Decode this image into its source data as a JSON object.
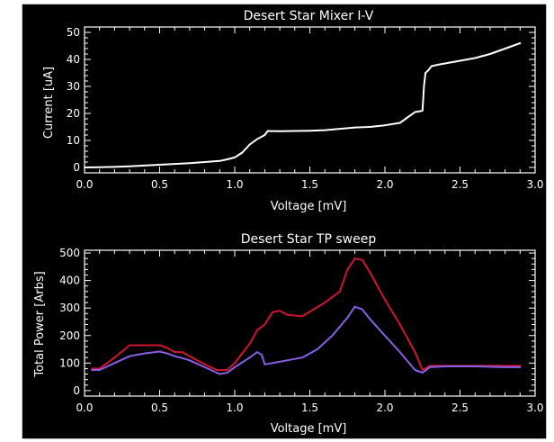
{
  "colors": {
    "background": "#000000",
    "border": "#ffffff",
    "axis": "#ffffff",
    "text": "#ffffff",
    "series_iv": "#ffffff",
    "series_red": "#d2152f",
    "series_violet": "#8a5fe6"
  },
  "chart_data": [
    {
      "type": "line",
      "title": "Desert Star Mixer I-V",
      "xlabel": "Voltage [mV]",
      "ylabel": "Current [uA]",
      "xlim": [
        0,
        3
      ],
      "ylim": [
        -2,
        52
      ],
      "xticks": [
        "0.0",
        "0.5",
        "1.0",
        "1.5",
        "2.0",
        "2.5",
        "3.0"
      ],
      "yticks": [
        "0",
        "10",
        "20",
        "30",
        "40",
        "50"
      ],
      "grid": false,
      "series": [
        {
          "color": "#ffffff",
          "points": [
            [
              0.0,
              0.0
            ],
            [
              0.1,
              0.1
            ],
            [
              0.2,
              0.2
            ],
            [
              0.3,
              0.4
            ],
            [
              0.4,
              0.7
            ],
            [
              0.5,
              1.0
            ],
            [
              0.6,
              1.3
            ],
            [
              0.7,
              1.6
            ],
            [
              0.8,
              2.0
            ],
            [
              0.9,
              2.4
            ],
            [
              0.95,
              3.0
            ],
            [
              1.0,
              3.7
            ],
            [
              1.05,
              5.5
            ],
            [
              1.1,
              8.5
            ],
            [
              1.15,
              10.5
            ],
            [
              1.2,
              12.0
            ],
            [
              1.22,
              13.5
            ],
            [
              1.3,
              13.4
            ],
            [
              1.4,
              13.5
            ],
            [
              1.5,
              13.6
            ],
            [
              1.6,
              13.8
            ],
            [
              1.7,
              14.3
            ],
            [
              1.8,
              14.8
            ],
            [
              1.9,
              15.0
            ],
            [
              2.0,
              15.6
            ],
            [
              2.1,
              16.5
            ],
            [
              2.15,
              18.5
            ],
            [
              2.2,
              20.5
            ],
            [
              2.25,
              21.0
            ],
            [
              2.26,
              30.0
            ],
            [
              2.27,
              35.0
            ],
            [
              2.29,
              36.0
            ],
            [
              2.31,
              37.5
            ],
            [
              2.35,
              38.0
            ],
            [
              2.5,
              39.5
            ],
            [
              2.6,
              40.5
            ],
            [
              2.7,
              42.0
            ],
            [
              2.8,
              44.0
            ],
            [
              2.9,
              46.0
            ]
          ]
        }
      ]
    },
    {
      "type": "line",
      "title": "Desert Star TP sweep",
      "xlabel": "Voltage [mV]",
      "ylabel": "Total Power [Arbs]",
      "xlim": [
        0,
        3
      ],
      "ylim": [
        -20,
        510
      ],
      "xticks": [
        "0.0",
        "0.5",
        "1.0",
        "1.5",
        "2.0",
        "2.5",
        "3.0"
      ],
      "yticks": [
        "0",
        "100",
        "200",
        "300",
        "400",
        "500"
      ],
      "grid": false,
      "series": [
        {
          "color": "#d2152f",
          "points": [
            [
              0.05,
              80
            ],
            [
              0.1,
              80
            ],
            [
              0.2,
              120
            ],
            [
              0.3,
              165
            ],
            [
              0.4,
              165
            ],
            [
              0.5,
              165
            ],
            [
              0.55,
              155
            ],
            [
              0.6,
              140
            ],
            [
              0.65,
              140
            ],
            [
              0.7,
              125
            ],
            [
              0.8,
              95
            ],
            [
              0.88,
              75
            ],
            [
              0.95,
              75
            ],
            [
              1.0,
              100
            ],
            [
              1.1,
              170
            ],
            [
              1.15,
              220
            ],
            [
              1.2,
              240
            ],
            [
              1.25,
              285
            ],
            [
              1.3,
              290
            ],
            [
              1.35,
              275
            ],
            [
              1.45,
              270
            ],
            [
              1.6,
              320
            ],
            [
              1.7,
              360
            ],
            [
              1.75,
              440
            ],
            [
              1.8,
              480
            ],
            [
              1.85,
              475
            ],
            [
              1.9,
              430
            ],
            [
              2.0,
              330
            ],
            [
              2.1,
              240
            ],
            [
              2.2,
              140
            ],
            [
              2.25,
              75
            ],
            [
              2.3,
              90
            ],
            [
              2.4,
              90
            ],
            [
              2.6,
              90
            ],
            [
              2.8,
              90
            ],
            [
              2.9,
              90
            ]
          ]
        },
        {
          "color": "#8a5fe6",
          "points": [
            [
              0.05,
              75
            ],
            [
              0.1,
              75
            ],
            [
              0.2,
              100
            ],
            [
              0.3,
              125
            ],
            [
              0.4,
              135
            ],
            [
              0.5,
              142
            ],
            [
              0.55,
              135
            ],
            [
              0.6,
              125
            ],
            [
              0.65,
              118
            ],
            [
              0.7,
              110
            ],
            [
              0.8,
              85
            ],
            [
              0.9,
              60
            ],
            [
              0.95,
              65
            ],
            [
              1.0,
              85
            ],
            [
              1.1,
              120
            ],
            [
              1.15,
              140
            ],
            [
              1.18,
              130
            ],
            [
              1.2,
              95
            ],
            [
              1.3,
              105
            ],
            [
              1.45,
              120
            ],
            [
              1.55,
              150
            ],
            [
              1.65,
              200
            ],
            [
              1.75,
              265
            ],
            [
              1.8,
              305
            ],
            [
              1.85,
              295
            ],
            [
              1.9,
              260
            ],
            [
              2.0,
              200
            ],
            [
              2.1,
              140
            ],
            [
              2.2,
              75
            ],
            [
              2.25,
              65
            ],
            [
              2.3,
              85
            ],
            [
              2.4,
              88
            ],
            [
              2.6,
              88
            ],
            [
              2.8,
              85
            ],
            [
              2.9,
              85
            ]
          ]
        }
      ]
    }
  ]
}
